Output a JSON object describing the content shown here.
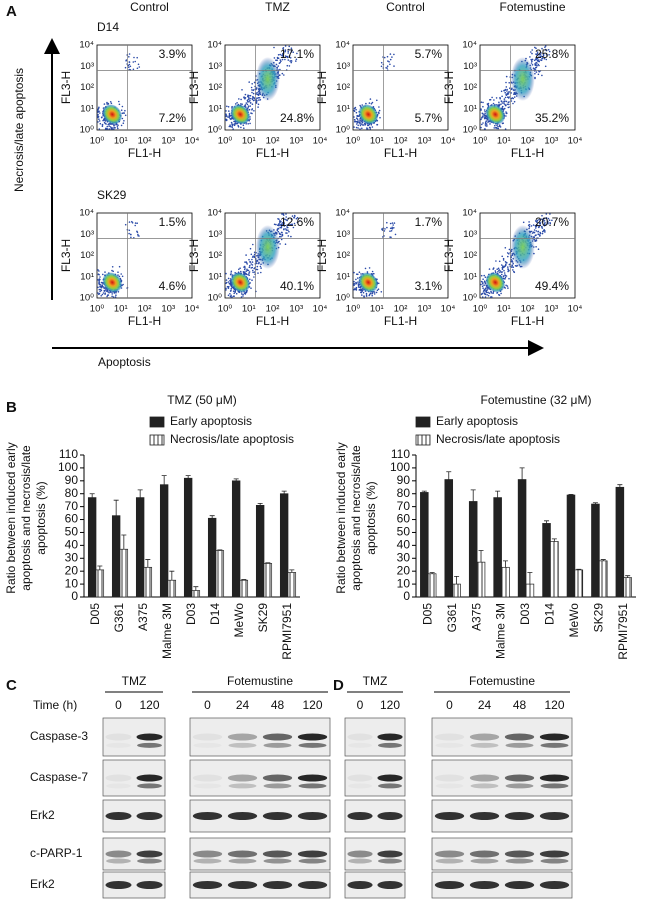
{
  "panel_a": {
    "letter": "A",
    "column_titles": [
      "Control",
      "TMZ",
      "Control",
      "Fotemustine"
    ],
    "row_titles": [
      "D14",
      "SK29"
    ],
    "y_axis_title": "Necrosis/late apoptosis",
    "x_axis_title": "Apoptosis",
    "plot_x_label": "FL1-H",
    "plot_y_label": "FL3-H",
    "ticks": [
      "10⁰",
      "10¹",
      "10²",
      "10³",
      "10⁴"
    ],
    "plots": [
      [
        {
          "upper": "3.9%",
          "lower": "7.2%"
        },
        {
          "upper": "17.1%",
          "lower": "24.8%"
        },
        {
          "upper": "5.7%",
          "lower": "5.7%"
        },
        {
          "upper": "25.8%",
          "lower": "35.2%"
        }
      ],
      [
        {
          "upper": "1.5%",
          "lower": "4.6%"
        },
        {
          "upper": "12.6%",
          "lower": "40.1%"
        },
        {
          "upper": "1.7%",
          "lower": "3.1%"
        },
        {
          "upper": "20.7%",
          "lower": "49.4%"
        }
      ]
    ]
  },
  "panel_b": {
    "letter": "B"
  },
  "chart_data": [
    {
      "type": "bar",
      "title": "TMZ (50 μM)",
      "ylabel": [
        "Ratio between induced early",
        "apoptosis and necrosis/late",
        "apoptosis (%)"
      ],
      "categories": [
        "D05",
        "G361",
        "A375",
        "Malme 3M",
        "D03",
        "D14",
        "MeWo",
        "SK29",
        "RPMI7951"
      ],
      "series": [
        {
          "name": "Early apoptosis",
          "color": "#222222",
          "pattern": "solid",
          "values": [
            77,
            63,
            77,
            87,
            92,
            61,
            90,
            71,
            80
          ],
          "errors": [
            3,
            12,
            6,
            7,
            2,
            2,
            1.5,
            1.5,
            2
          ]
        },
        {
          "name": "Necrosis/late apoptosis",
          "color": "#ffffff",
          "pattern": "vertical-hatch",
          "values": [
            21,
            37,
            23,
            13,
            5,
            36,
            13,
            26,
            19
          ],
          "errors": [
            3,
            11,
            6,
            7,
            3,
            0.5,
            0.5,
            0.5,
            2
          ]
        }
      ],
      "ylim": [
        0,
        110
      ],
      "yticks": [
        0,
        10,
        20,
        30,
        40,
        50,
        60,
        70,
        80,
        90,
        100,
        110
      ]
    },
    {
      "type": "bar",
      "title": "Fotemustine (32 μM)",
      "ylabel": [
        "Ratio between induced early",
        "apoptosis and necrosis/late",
        "apoptosis (%)"
      ],
      "categories": [
        "D05",
        "G361",
        "A375",
        "Malme 3M",
        "D03",
        "D14",
        "MeWo",
        "SK29",
        "RPMI7951"
      ],
      "series": [
        {
          "name": "Early apoptosis",
          "color": "#222222",
          "pattern": "solid",
          "values": [
            81,
            91,
            74,
            77,
            91,
            57,
            79,
            72,
            85
          ],
          "errors": [
            1,
            6,
            9,
            5,
            9,
            2,
            0.5,
            1,
            2
          ]
        },
        {
          "name": "Necrosis/late apoptosis",
          "color": "#ffffff",
          "pattern": "vertical-hatch",
          "values": [
            18,
            10,
            27,
            23,
            10,
            43,
            21,
            28,
            15
          ],
          "errors": [
            1,
            6,
            9,
            5,
            9,
            2,
            0.5,
            1,
            1.5
          ]
        }
      ],
      "ylim": [
        0,
        110
      ],
      "yticks": [
        0,
        10,
        20,
        30,
        40,
        50,
        60,
        70,
        80,
        90,
        100,
        110
      ]
    }
  ],
  "panel_c": {
    "letter": "C",
    "time_label": "Time (h)",
    "groups": [
      {
        "label": "TMZ",
        "lanes": [
          0,
          120
        ]
      },
      {
        "label": "Fotemustine",
        "lanes": [
          0,
          24,
          48,
          120
        ]
      }
    ],
    "rows": [
      "Caspase-3",
      "Caspase-7",
      "Erk2",
      "c-PARP-1",
      "Erk2"
    ]
  },
  "panel_d": {
    "letter": "D",
    "groups": [
      {
        "label": "TMZ",
        "lanes": [
          0,
          120
        ]
      },
      {
        "label": "Fotemustine",
        "lanes": [
          0,
          24,
          48,
          120
        ]
      }
    ]
  }
}
